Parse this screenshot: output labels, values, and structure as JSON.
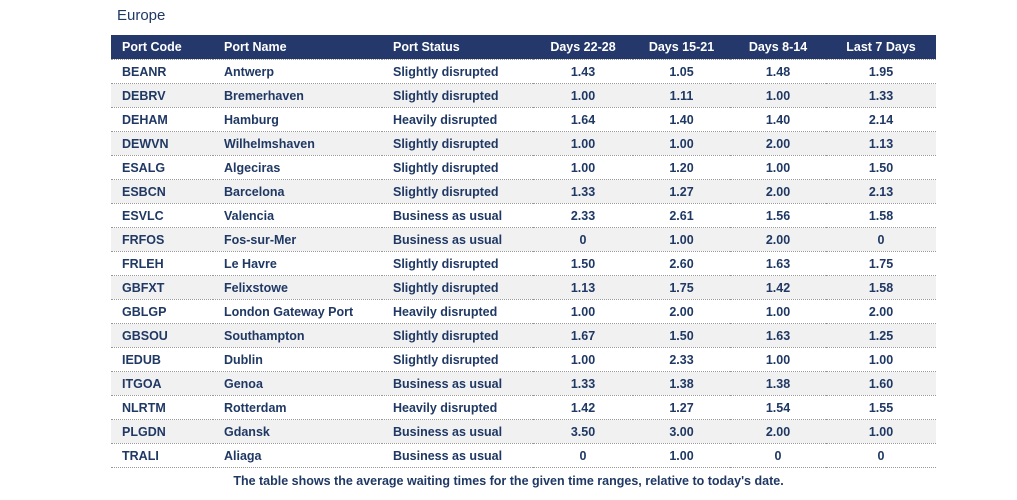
{
  "page": {
    "title": "Europe",
    "footer_note": "The table shows the average waiting times for the given time ranges, relative to today's date."
  },
  "colors": {
    "header_bg": "#24386B",
    "text_navy": "#1F3864",
    "stripe_bg": "#F1F1F1",
    "divider": "#999999"
  },
  "chart_data": {
    "type": "table",
    "title": "Europe",
    "columns": [
      "Port Code",
      "Port Name",
      "Port Status",
      "Days 22-28",
      "Days 15-21",
      "Days 8-14",
      "Last 7 Days"
    ],
    "rows": [
      [
        "BEANR",
        "Antwerp",
        "Slightly disrupted",
        "1.43",
        "1.05",
        "1.48",
        "1.95"
      ],
      [
        "DEBRV",
        "Bremerhaven",
        "Slightly disrupted",
        "1.00",
        "1.11",
        "1.00",
        "1.33"
      ],
      [
        "DEHAM",
        "Hamburg",
        "Heavily disrupted",
        "1.64",
        "1.40",
        "1.40",
        "2.14"
      ],
      [
        "DEWVN",
        "Wilhelmshaven",
        "Slightly disrupted",
        "1.00",
        "1.00",
        "2.00",
        "1.13"
      ],
      [
        "ESALG",
        "Algeciras",
        "Slightly disrupted",
        "1.00",
        "1.20",
        "1.00",
        "1.50"
      ],
      [
        "ESBCN",
        "Barcelona",
        "Slightly disrupted",
        "1.33",
        "1.27",
        "2.00",
        "2.13"
      ],
      [
        "ESVLC",
        "Valencia",
        "Business as usual",
        "2.33",
        "2.61",
        "1.56",
        "1.58"
      ],
      [
        "FRFOS",
        "Fos-sur-Mer",
        "Business as usual",
        "0",
        "1.00",
        "2.00",
        "0"
      ],
      [
        "FRLEH",
        "Le Havre",
        "Slightly disrupted",
        "1.50",
        "2.60",
        "1.63",
        "1.75"
      ],
      [
        "GBFXT",
        "Felixstowe",
        "Slightly disrupted",
        "1.13",
        "1.75",
        "1.42",
        "1.58"
      ],
      [
        "GBLGP",
        "London Gateway Port",
        "Heavily disrupted",
        "1.00",
        "2.00",
        "1.00",
        "2.00"
      ],
      [
        "GBSOU",
        "Southampton",
        "Slightly disrupted",
        "1.67",
        "1.50",
        "1.63",
        "1.25"
      ],
      [
        "IEDUB",
        "Dublin",
        "Slightly disrupted",
        "1.00",
        "2.33",
        "1.00",
        "1.00"
      ],
      [
        "ITGOA",
        "Genoa",
        "Business as usual",
        "1.33",
        "1.38",
        "1.38",
        "1.60"
      ],
      [
        "NLRTM",
        "Rotterdam",
        "Heavily disrupted",
        "1.42",
        "1.27",
        "1.54",
        "1.55"
      ],
      [
        "PLGDN",
        "Gdansk",
        "Business as usual",
        "3.50",
        "3.00",
        "2.00",
        "1.00"
      ],
      [
        "TRALI",
        "Aliaga",
        "Business as usual",
        "0",
        "1.00",
        "0",
        "0"
      ]
    ]
  }
}
